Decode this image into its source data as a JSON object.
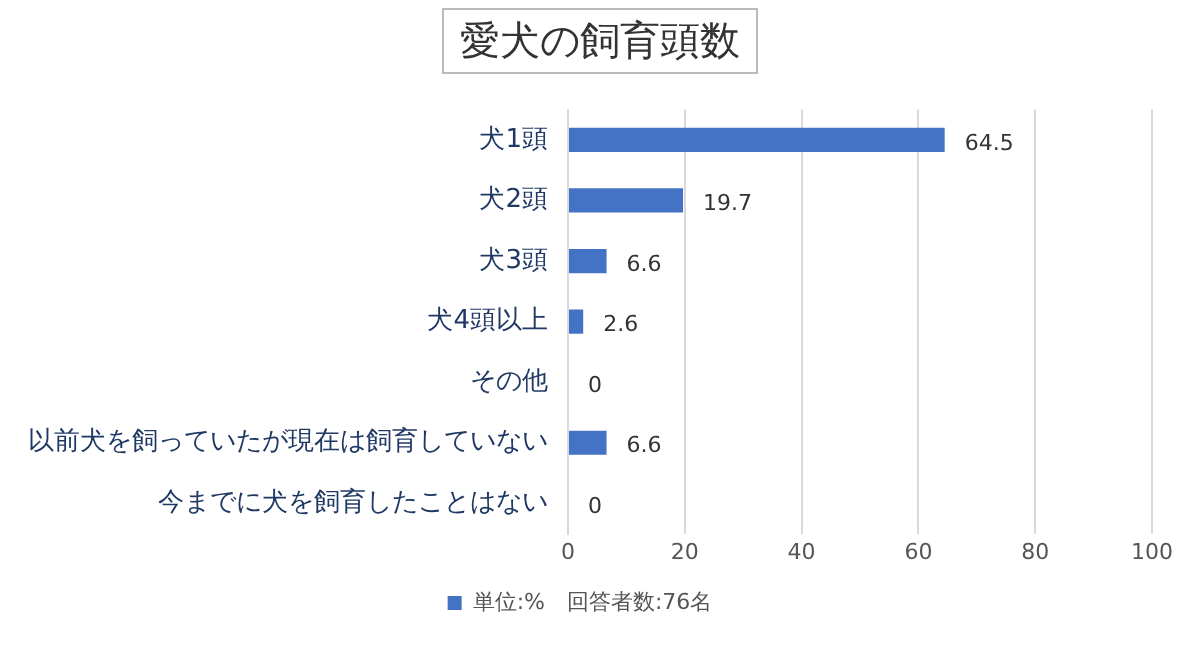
{
  "chart_data": {
    "type": "bar",
    "orientation": "horizontal",
    "title": "愛犬の飼育頭数",
    "categories": [
      "犬1頭",
      "犬2頭",
      "犬3頭",
      "犬4頭以上",
      "その他",
      "以前犬を飼っていたが現在は飼育していない",
      "今までに犬を飼育したことはない"
    ],
    "series": [
      {
        "name": "単位:%　回答者数:76名",
        "color": "#4472c4",
        "values": [
          64.5,
          19.7,
          6.6,
          2.6,
          0,
          6.6,
          0
        ]
      }
    ],
    "xlim": [
      0,
      100
    ],
    "xticks": [
      0,
      20,
      40,
      60,
      80,
      100
    ],
    "grid": "x",
    "legend": "bottom",
    "data_labels": true
  }
}
